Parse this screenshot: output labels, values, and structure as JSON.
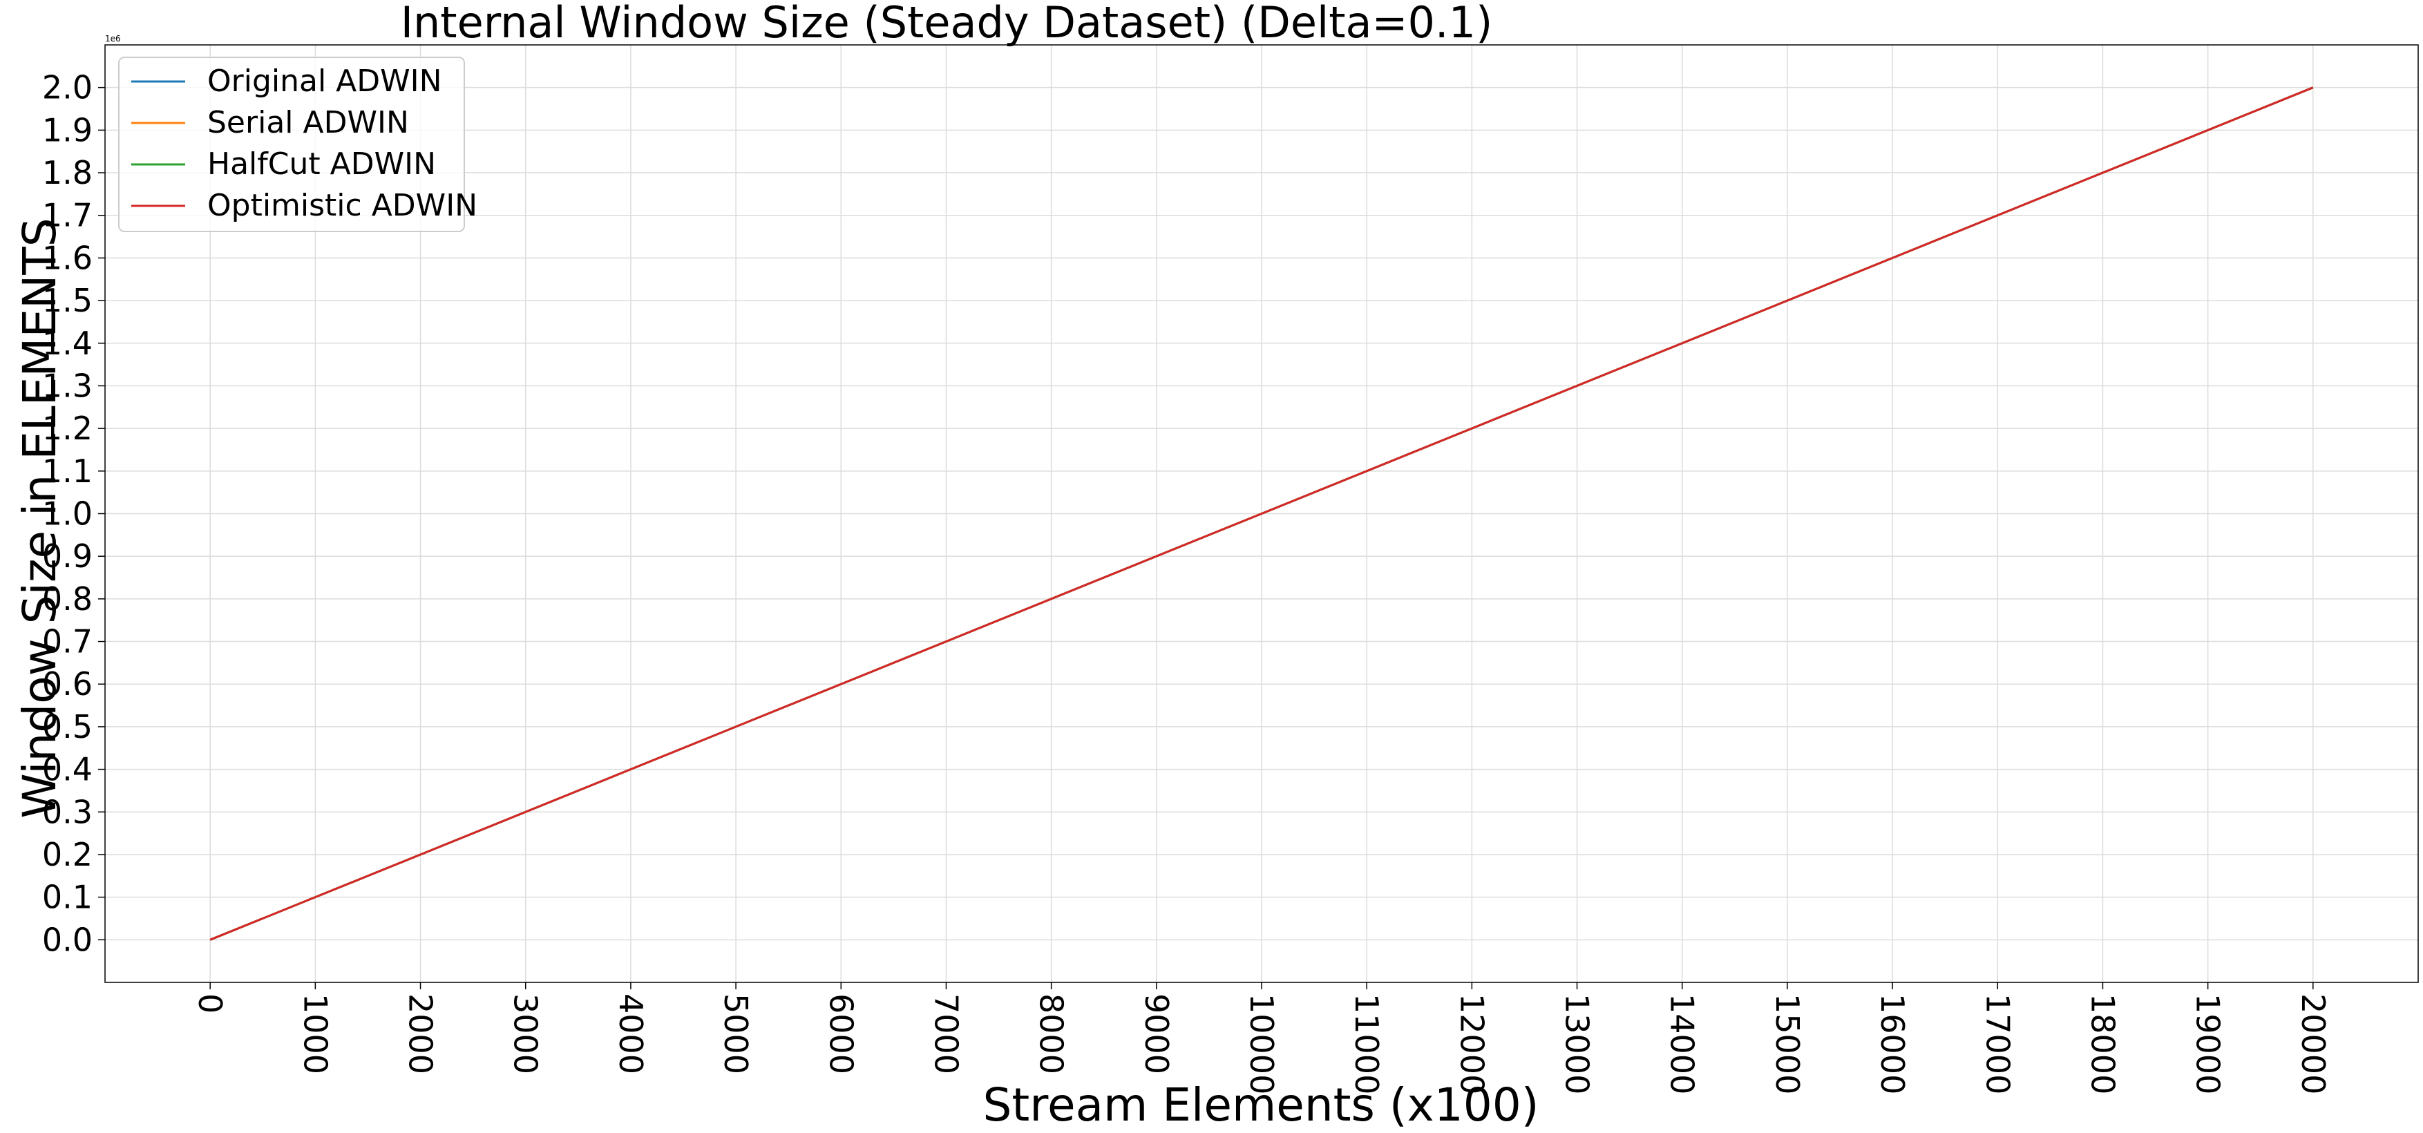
{
  "chart_data": {
    "type": "line",
    "title": "Internal Window Size (Steady Dataset) (Delta=0.1)",
    "xlabel": "Stream Elements (x100)",
    "ylabel": "Window Size in ELEMENTS",
    "y_offset_label": "1e6",
    "xlim": [
      -1000,
      21000
    ],
    "ylim": [
      -0.1,
      2.1
    ],
    "x_ticks": [
      0,
      1000,
      2000,
      3000,
      4000,
      5000,
      6000,
      7000,
      8000,
      9000,
      10000,
      11000,
      12000,
      13000,
      14000,
      15000,
      16000,
      17000,
      18000,
      19000,
      20000
    ],
    "x_tick_labels": [
      "0",
      "1000",
      "2000",
      "3000",
      "4000",
      "5000",
      "6000",
      "7000",
      "8000",
      "9000",
      "10000",
      "11000",
      "12000",
      "13000",
      "14000",
      "15000",
      "16000",
      "17000",
      "18000",
      "19000",
      "20000"
    ],
    "y_ticks": [
      0.0,
      0.1,
      0.2,
      0.3,
      0.4,
      0.5,
      0.6,
      0.7,
      0.8,
      0.9,
      1.0,
      1.1,
      1.2,
      1.3,
      1.4,
      1.5,
      1.6,
      1.7,
      1.8,
      1.9,
      2.0
    ],
    "y_tick_labels": [
      "0.0",
      "0.1",
      "0.2",
      "0.3",
      "0.4",
      "0.5",
      "0.6",
      "0.7",
      "0.8",
      "0.9",
      "1.0",
      "1.1",
      "1.2",
      "1.3",
      "1.4",
      "1.5",
      "1.6",
      "1.7",
      "1.8",
      "1.9",
      "2.0"
    ],
    "grid": true,
    "legend_position": "top-left",
    "series": [
      {
        "name": "Original ADWIN",
        "color": "#1f77b4",
        "x": [
          0,
          20000
        ],
        "y": [
          0.0,
          2.0
        ]
      },
      {
        "name": "Serial ADWIN",
        "color": "#ff7f0e",
        "x": [
          0,
          20000
        ],
        "y": [
          0.0,
          2.0
        ]
      },
      {
        "name": "HalfCut ADWIN",
        "color": "#2ca02c",
        "x": [
          0,
          20000
        ],
        "y": [
          0.0,
          2.0
        ]
      },
      {
        "name": "Optimistic ADWIN",
        "color": "#d62728",
        "x": [
          0,
          20000
        ],
        "y": [
          0.0,
          2.0
        ]
      }
    ]
  }
}
